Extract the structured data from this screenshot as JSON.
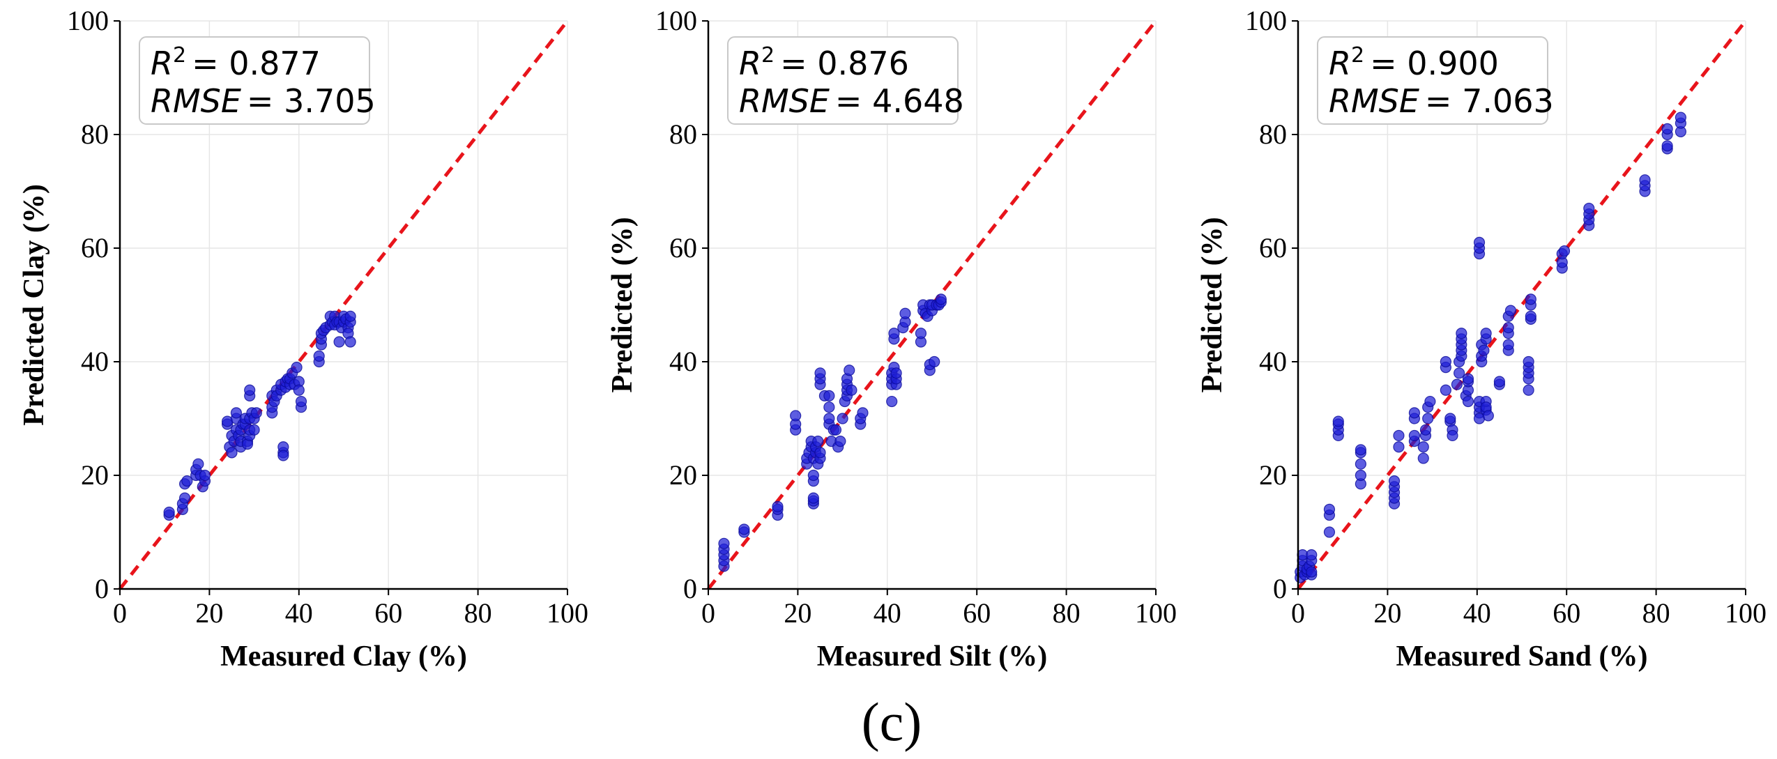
{
  "figure_caption": "(c)",
  "colors": {
    "points": "#1f1fd6",
    "points_edge": "#0a0a9a",
    "identity_line": "#e8141b",
    "grid": "#e6e6e6"
  },
  "chart_data": [
    {
      "type": "scatter",
      "xlabel": "Measured Clay (%)",
      "ylabel": "Predicted Clay (%)",
      "xlim": [
        0,
        100
      ],
      "ylim": [
        0,
        100
      ],
      "xticks": [
        "0",
        "20",
        "40",
        "60",
        "80",
        "100"
      ],
      "yticks": [
        "0",
        "20",
        "40",
        "60",
        "80",
        "100"
      ],
      "grid": true,
      "stats": {
        "r2_symbol": "R",
        "r2_exp": "2",
        "r2_value": "= 0.877",
        "rmse_symbol": "RMSE",
        "rmse_value": "= 3.705"
      },
      "reference_line": "y = x",
      "points": [
        [
          11,
          13
        ],
        [
          11,
          13.5
        ],
        [
          14,
          14
        ],
        [
          14,
          15
        ],
        [
          14.5,
          16
        ],
        [
          14.5,
          18.5
        ],
        [
          15,
          19
        ],
        [
          17,
          20
        ],
        [
          17,
          21
        ],
        [
          17.5,
          22
        ],
        [
          18,
          20
        ],
        [
          18.5,
          18
        ],
        [
          19,
          19
        ],
        [
          19,
          20
        ],
        [
          24,
          29
        ],
        [
          24,
          29.5
        ],
        [
          24.5,
          25
        ],
        [
          25,
          24
        ],
        [
          25,
          27
        ],
        [
          25.5,
          26
        ],
        [
          26,
          28
        ],
        [
          26,
          30
        ],
        [
          26,
          31
        ],
        [
          26.5,
          27
        ],
        [
          27,
          25
        ],
        [
          27,
          26
        ],
        [
          27,
          28
        ],
        [
          27.5,
          29
        ],
        [
          28,
          29
        ],
        [
          28,
          30
        ],
        [
          28.5,
          26
        ],
        [
          28.5,
          25.5
        ],
        [
          29,
          27
        ],
        [
          29,
          28
        ],
        [
          29,
          30
        ],
        [
          29,
          34
        ],
        [
          29,
          35
        ],
        [
          29.5,
          31
        ],
        [
          30,
          28
        ],
        [
          30,
          30
        ],
        [
          30.5,
          31
        ],
        [
          34,
          31
        ],
        [
          34,
          32
        ],
        [
          34,
          34
        ],
        [
          34.5,
          33
        ],
        [
          35,
          35
        ],
        [
          35,
          34
        ],
        [
          36,
          35
        ],
        [
          36,
          36
        ],
        [
          36.5,
          24
        ],
        [
          36.5,
          25
        ],
        [
          36.5,
          23.5
        ],
        [
          37,
          35.5
        ],
        [
          37,
          36.5
        ],
        [
          37.5,
          37
        ],
        [
          38,
          36
        ],
        [
          38,
          37
        ],
        [
          38.5,
          38
        ],
        [
          39,
          36
        ],
        [
          39.5,
          39
        ],
        [
          40,
          36.5
        ],
        [
          40,
          35
        ],
        [
          40.5,
          32
        ],
        [
          40.5,
          33
        ],
        [
          44.5,
          40
        ],
        [
          44.5,
          41
        ],
        [
          45,
          43
        ],
        [
          45,
          44
        ],
        [
          45,
          45
        ],
        [
          45.5,
          45.5
        ],
        [
          46,
          46
        ],
        [
          47,
          46.5
        ],
        [
          47,
          48
        ],
        [
          47.5,
          47
        ],
        [
          48,
          48
        ],
        [
          48,
          46.5
        ],
        [
          48.5,
          47
        ],
        [
          49,
          47
        ],
        [
          49,
          43.5
        ],
        [
          49.5,
          46
        ],
        [
          50,
          47
        ],
        [
          50,
          48
        ],
        [
          50.5,
          47.5
        ],
        [
          51,
          46
        ],
        [
          51,
          45
        ],
        [
          51.5,
          47
        ],
        [
          51.5,
          43.5
        ],
        [
          51.5,
          48
        ]
      ]
    },
    {
      "type": "scatter",
      "xlabel": "Measured Silt (%)",
      "ylabel": "Predicted (%)",
      "xlim": [
        0,
        100
      ],
      "ylim": [
        0,
        100
      ],
      "xticks": [
        "0",
        "20",
        "40",
        "60",
        "80",
        "100"
      ],
      "yticks": [
        "0",
        "20",
        "40",
        "60",
        "80",
        "100"
      ],
      "grid": true,
      "stats": {
        "r2_symbol": "R",
        "r2_exp": "2",
        "r2_value": "= 0.876",
        "rmse_symbol": "RMSE",
        "rmse_value": "= 4.648"
      },
      "reference_line": "y = x",
      "points": [
        [
          3.5,
          4
        ],
        [
          3.5,
          5
        ],
        [
          3.5,
          6
        ],
        [
          3.5,
          7
        ],
        [
          3.5,
          8
        ],
        [
          8,
          10
        ],
        [
          8,
          10.5
        ],
        [
          15.5,
          13
        ],
        [
          15.5,
          14
        ],
        [
          15.5,
          14.5
        ],
        [
          19.5,
          28
        ],
        [
          19.5,
          29
        ],
        [
          19.5,
          30.5
        ],
        [
          22,
          22
        ],
        [
          22,
          23
        ],
        [
          22.5,
          24
        ],
        [
          23,
          25
        ],
        [
          23,
          26
        ],
        [
          23.5,
          15
        ],
        [
          23.5,
          15.5
        ],
        [
          23.5,
          16
        ],
        [
          23.5,
          19
        ],
        [
          23.5,
          20
        ],
        [
          23.5,
          23
        ],
        [
          24,
          24
        ],
        [
          24,
          25
        ],
        [
          24.5,
          26
        ],
        [
          24.5,
          22
        ],
        [
          25,
          23
        ],
        [
          25,
          24
        ],
        [
          25,
          36
        ],
        [
          25,
          37
        ],
        [
          25,
          38
        ],
        [
          26,
          34
        ],
        [
          27,
          29
        ],
        [
          27,
          30
        ],
        [
          27,
          32
        ],
        [
          27,
          34
        ],
        [
          27.5,
          26
        ],
        [
          28,
          28
        ],
        [
          28.5,
          28
        ],
        [
          29,
          25
        ],
        [
          29.5,
          26
        ],
        [
          30,
          30
        ],
        [
          30.5,
          33
        ],
        [
          31,
          34
        ],
        [
          31,
          35
        ],
        [
          31,
          36
        ],
        [
          31,
          37
        ],
        [
          31.5,
          38.5
        ],
        [
          32,
          35
        ],
        [
          34,
          29
        ],
        [
          34,
          30
        ],
        [
          34.5,
          31
        ],
        [
          41,
          33
        ],
        [
          41,
          36
        ],
        [
          41,
          37
        ],
        [
          41,
          38
        ],
        [
          41.5,
          39
        ],
        [
          41.5,
          44
        ],
        [
          41.5,
          45
        ],
        [
          42,
          36
        ],
        [
          42,
          37
        ],
        [
          42,
          38
        ],
        [
          43.5,
          46
        ],
        [
          44,
          47
        ],
        [
          44,
          48.5
        ],
        [
          47.5,
          43.5
        ],
        [
          47.5,
          45
        ],
        [
          48,
          49
        ],
        [
          48,
          50
        ],
        [
          48.5,
          48.5
        ],
        [
          49,
          48
        ],
        [
          49.5,
          50
        ],
        [
          49.5,
          38.5
        ],
        [
          49.5,
          39.5
        ],
        [
          50,
          49
        ],
        [
          50,
          50
        ],
        [
          50.5,
          40
        ],
        [
          51,
          50
        ],
        [
          51.5,
          50
        ],
        [
          52,
          50.5
        ],
        [
          52,
          51
        ]
      ]
    },
    {
      "type": "scatter",
      "xlabel": "Measured Sand (%)",
      "ylabel": "Predicted (%)",
      "xlim": [
        0,
        100
      ],
      "ylim": [
        0,
        100
      ],
      "xticks": [
        "0",
        "20",
        "40",
        "60",
        "80",
        "100"
      ],
      "yticks": [
        "0",
        "20",
        "40",
        "60",
        "80",
        "100"
      ],
      "grid": true,
      "stats": {
        "r2_symbol": "R",
        "r2_exp": "2",
        "r2_value": "= 0.900",
        "rmse_symbol": "RMSE",
        "rmse_value": "= 7.063"
      },
      "reference_line": "y = x",
      "points": [
        [
          0.5,
          2
        ],
        [
          0.5,
          3
        ],
        [
          1,
          4
        ],
        [
          1,
          5
        ],
        [
          1,
          6
        ],
        [
          1.5,
          2.5
        ],
        [
          2,
          3
        ],
        [
          2,
          3.5
        ],
        [
          2.5,
          4
        ],
        [
          3,
          2.5
        ],
        [
          3,
          5
        ],
        [
          3,
          6
        ],
        [
          3,
          3
        ],
        [
          7,
          10
        ],
        [
          7,
          13
        ],
        [
          7,
          14
        ],
        [
          9,
          27
        ],
        [
          9,
          28
        ],
        [
          9,
          29
        ],
        [
          9,
          29.5
        ],
        [
          14,
          18.5
        ],
        [
          14,
          20
        ],
        [
          14,
          22
        ],
        [
          14,
          24
        ],
        [
          14,
          24.5
        ],
        [
          21.5,
          15
        ],
        [
          21.5,
          16
        ],
        [
          21.5,
          17
        ],
        [
          21.5,
          18
        ],
        [
          21.5,
          19
        ],
        [
          22.5,
          25
        ],
        [
          22.5,
          27
        ],
        [
          26,
          26
        ],
        [
          26,
          27
        ],
        [
          26,
          30
        ],
        [
          26,
          31
        ],
        [
          28,
          23
        ],
        [
          28,
          25
        ],
        [
          28.5,
          27
        ],
        [
          28.5,
          28
        ],
        [
          29,
          30
        ],
        [
          29,
          32
        ],
        [
          29.5,
          33
        ],
        [
          33,
          35
        ],
        [
          33,
          39
        ],
        [
          33,
          40
        ],
        [
          34,
          29.5
        ],
        [
          34,
          30
        ],
        [
          34.5,
          28
        ],
        [
          34.5,
          27
        ],
        [
          35.5,
          36
        ],
        [
          36,
          38
        ],
        [
          36,
          40
        ],
        [
          36.5,
          41
        ],
        [
          36.5,
          42
        ],
        [
          36.5,
          43
        ],
        [
          36.5,
          44
        ],
        [
          36.5,
          45
        ],
        [
          37.5,
          34
        ],
        [
          38,
          33
        ],
        [
          38,
          35
        ],
        [
          38,
          36.5
        ],
        [
          38,
          37
        ],
        [
          40.5,
          31
        ],
        [
          40.5,
          30
        ],
        [
          40.5,
          32
        ],
        [
          40.5,
          33
        ],
        [
          40.5,
          59
        ],
        [
          40.5,
          60
        ],
        [
          40.5,
          61
        ],
        [
          41,
          40
        ],
        [
          41,
          41
        ],
        [
          41,
          43
        ],
        [
          41.5,
          42
        ],
        [
          42,
          44
        ],
        [
          42,
          45
        ],
        [
          42,
          31.5
        ],
        [
          42,
          33
        ],
        [
          42,
          32
        ],
        [
          42.5,
          30.5
        ],
        [
          45,
          36
        ],
        [
          45,
          36.5
        ],
        [
          47,
          42
        ],
        [
          47,
          43
        ],
        [
          47,
          45
        ],
        [
          47,
          46
        ],
        [
          47,
          48
        ],
        [
          47.5,
          49
        ],
        [
          51.5,
          35
        ],
        [
          51.5,
          37
        ],
        [
          51.5,
          38
        ],
        [
          51.5,
          39
        ],
        [
          51.5,
          40
        ],
        [
          52,
          47.5
        ],
        [
          52,
          48
        ],
        [
          52,
          50
        ],
        [
          52,
          51
        ],
        [
          59,
          56.5
        ],
        [
          59,
          57.5
        ],
        [
          59,
          59
        ],
        [
          59.5,
          59.5
        ],
        [
          65,
          64
        ],
        [
          65,
          65
        ],
        [
          65,
          66
        ],
        [
          65,
          67
        ],
        [
          77.5,
          70
        ],
        [
          77.5,
          71
        ],
        [
          77.5,
          72
        ],
        [
          82.5,
          77.5
        ],
        [
          82.5,
          78
        ],
        [
          82.5,
          80
        ],
        [
          82.5,
          81
        ],
        [
          85.5,
          80.5
        ],
        [
          85.5,
          82
        ],
        [
          85.5,
          83
        ]
      ]
    }
  ]
}
